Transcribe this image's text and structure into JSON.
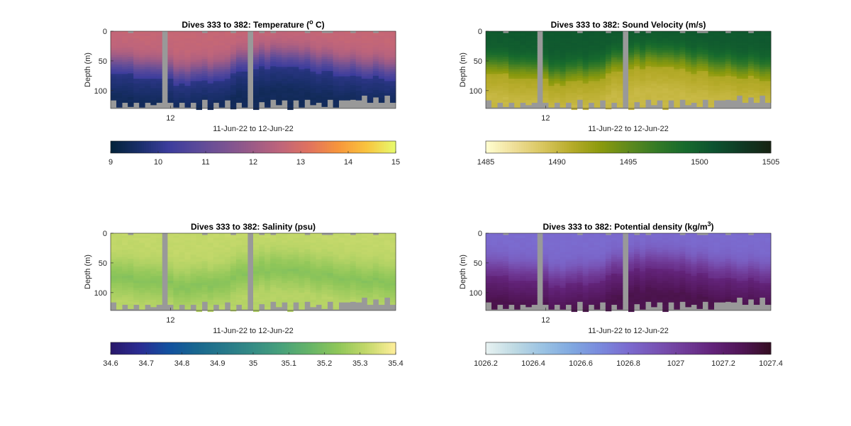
{
  "chart_data": [
    {
      "type": "heatmap",
      "title": "Dives 333 to 382: Temperature (",
      "title_sup": "o",
      "title_post": " C)",
      "xlabel": "11-Jun-22 to 12-Jun-22",
      "ylabel": "Depth (m)",
      "x_ticks": [
        "12"
      ],
      "y_ticks": [
        0,
        50,
        100
      ],
      "ylim": [
        0,
        130
      ],
      "profiles": 50,
      "surface_value": 12.7,
      "layer_value": 9.9,
      "deep_value": 9.4,
      "colorbar": {
        "colormap": "thermal",
        "range": [
          9,
          15
        ],
        "ticks": [
          "9",
          "10",
          "11",
          "12",
          "13",
          "14",
          "15"
        ]
      }
    },
    {
      "type": "heatmap",
      "title": "Dives 333 to 382: Sound Velocity (m/s)",
      "title_sup": "",
      "title_post": "",
      "xlabel": "11-Jun-22 to 12-Jun-22",
      "ylabel": "Depth (m)",
      "x_ticks": [
        "12"
      ],
      "y_ticks": [
        0,
        50,
        100
      ],
      "ylim": [
        0,
        130
      ],
      "profiles": 50,
      "surface_value": 1500.5,
      "layer_value": 1491.5,
      "deep_value": 1490,
      "colorbar": {
        "colormap": "speed",
        "range": [
          1485,
          1505
        ],
        "ticks": [
          "1485",
          "1490",
          "1495",
          "1500",
          "1505"
        ]
      }
    },
    {
      "type": "heatmap",
      "title": "Dives 333 to 382: Salinity (psu)",
      "title_sup": "",
      "title_post": "",
      "xlabel": "11-Jun-22 to 12-Jun-22",
      "ylabel": "Depth (m)",
      "x_ticks": [
        "12"
      ],
      "y_ticks": [
        0,
        50,
        100
      ],
      "ylim": [
        0,
        130
      ],
      "profiles": 50,
      "surface_value": 35.32,
      "layer_value": 35.22,
      "deep_value": 35.3,
      "colorbar": {
        "colormap": "haline",
        "range": [
          34.6,
          35.4
        ],
        "ticks": [
          "34.6",
          "34.7",
          "34.8",
          "34.9",
          "35",
          "35.1",
          "35.2",
          "35.3",
          "35.4"
        ]
      }
    },
    {
      "type": "heatmap",
      "title": "Dives 333 to 382: Potential density (kg/m",
      "title_sup": "3",
      "title_post": ")",
      "xlabel": "11-Jun-22 to 12-Jun-22",
      "ylabel": "Depth (m)",
      "x_ticks": [
        "12"
      ],
      "y_ticks": [
        0,
        50,
        100
      ],
      "ylim": [
        0,
        130
      ],
      "profiles": 50,
      "surface_value": 1026.8,
      "layer_value": 1027.15,
      "deep_value": 1027.3,
      "colorbar": {
        "colormap": "dense",
        "range": [
          1026.2,
          1027.4
        ],
        "ticks": [
          "1026.2",
          "1026.4",
          "1026.6",
          "1026.8",
          "1027",
          "1027.2",
          "1027.4"
        ]
      }
    }
  ]
}
